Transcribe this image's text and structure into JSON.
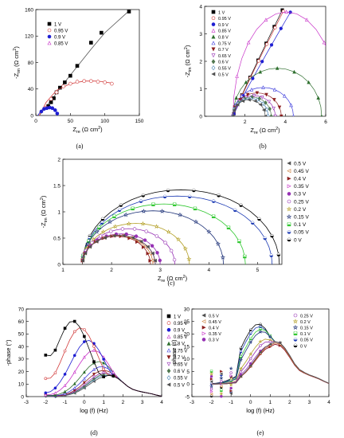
{
  "figure": {
    "captions": [
      "(a)",
      "(b)",
      "(c)",
      "(d)",
      "(e)"
    ]
  },
  "chart_data": [
    {
      "id": "a",
      "type": "scatter",
      "xlabel": "Z_re (Ω cm²)",
      "ylabel": "-Z_im (Ω cm²)",
      "xlim": [
        0,
        150
      ],
      "ylim": [
        0,
        160
      ],
      "xticks": [
        0,
        50,
        100,
        150
      ],
      "yticks": [
        0,
        40,
        80,
        120,
        160
      ],
      "legend_position": "top-left",
      "series": [
        {
          "name": "1 V",
          "color": "#000000",
          "marker": "square-filled",
          "x": [
            18,
            22,
            26,
            30,
            35,
            42,
            50,
            60,
            80,
            95,
            135
          ],
          "y": [
            14,
            20,
            26,
            35,
            42,
            50,
            60,
            75,
            110,
            125,
            157
          ],
          "fit": [
            [
              5,
              0
            ],
            [
              14,
              12
            ],
            [
              25,
              27
            ],
            [
              40,
              48
            ],
            [
              60,
              74
            ],
            [
              80,
              100
            ],
            [
              100,
              125
            ],
            [
              135,
              158
            ]
          ]
        },
        {
          "name": "0.95 V",
          "color": "#d23c3c",
          "marker": "circle-open",
          "x": [
            15,
            22,
            30,
            40,
            50,
            60,
            70,
            80,
            90,
            100,
            110
          ],
          "y": [
            12,
            25,
            35,
            44,
            48,
            51,
            52,
            52,
            51,
            50,
            48
          ],
          "fit": [
            [
              5,
              0
            ],
            [
              15,
              20
            ],
            [
              30,
              38
            ],
            [
              50,
              48
            ],
            [
              70,
              52
            ],
            [
              90,
              52
            ],
            [
              110,
              49
            ]
          ]
        },
        {
          "name": "0.9 V",
          "color": "#1e1ed2",
          "marker": "circle-filled",
          "x": [
            8,
            12,
            16,
            20,
            24,
            28,
            31
          ],
          "y": [
            6,
            10,
            11,
            12,
            11,
            8,
            3
          ],
          "fit": [
            [
              3,
              0
            ],
            [
              8,
              8
            ],
            [
              15,
              11
            ],
            [
              22,
              11
            ],
            [
              28,
              8
            ],
            [
              32,
              0
            ]
          ]
        },
        {
          "name": "0.85 V",
          "color": "#c832c8",
          "marker": "triangle-open",
          "x": [],
          "y": [],
          "fit": []
        }
      ]
    },
    {
      "id": "b",
      "type": "scatter",
      "xlabel": "Z_re (Ω cm²)",
      "ylabel": "-Z_im (Ω cm²)",
      "xlim": [
        0,
        6
      ],
      "ylim": [
        0,
        4
      ],
      "xticks": [
        2,
        4,
        6
      ],
      "yticks": [
        0,
        1,
        2,
        3,
        4
      ],
      "legend_position": "top-left",
      "series": [
        {
          "name": "1 V",
          "color": "#000000",
          "marker": "square-filled",
          "shape": "line",
          "r0": 1.4,
          "slope": 1.65,
          "xend": 3.8
        },
        {
          "name": "0.95 V",
          "color": "#d23c3c",
          "marker": "circle-open",
          "shape": "line",
          "r0": 1.4,
          "slope": 1.6,
          "xend": 3.85
        },
        {
          "name": "0.9 V",
          "color": "#1e1ed2",
          "marker": "circle-filled",
          "shape": "line",
          "r0": 1.4,
          "slope": 1.4,
          "xend": 4.2
        },
        {
          "name": "0.85 V",
          "color": "#c832c8",
          "marker": "triangle-open",
          "shape": "arc",
          "r0": 1.4,
          "r1": 6.7,
          "h": 3.8
        },
        {
          "name": "0.8 V",
          "color": "#2d6e2d",
          "marker": "triangle-filled",
          "shape": "arc",
          "r0": 1.4,
          "r1": 5.8,
          "h": 1.75
        },
        {
          "name": "0.75 V",
          "color": "#3c3cdc",
          "marker": "triangle-open",
          "shape": "arc",
          "r0": 1.4,
          "r1": 4.4,
          "h": 1.05
        },
        {
          "name": "0.7 V",
          "color": "#8c1e1e",
          "marker": "triangle-down-filled",
          "shape": "arc",
          "r0": 1.4,
          "r1": 3.8,
          "h": 0.85
        },
        {
          "name": "0.65 V",
          "color": "#9632b4",
          "marker": "triangle-down-open",
          "shape": "arc",
          "r0": 1.4,
          "r1": 3.5,
          "h": 0.75
        },
        {
          "name": "0.6 V",
          "color": "#507850",
          "marker": "diamond-filled",
          "shape": "arc",
          "r0": 1.4,
          "r1": 3.3,
          "h": 0.7
        },
        {
          "name": "0.55 V",
          "color": "#4682b4",
          "marker": "diamond-open",
          "shape": "arc",
          "r0": 1.4,
          "r1": 3.15,
          "h": 0.65
        },
        {
          "name": "0.5 V",
          "color": "#505050",
          "marker": "triangle-left-filled",
          "shape": "arc",
          "r0": 1.4,
          "r1": 3.0,
          "h": 0.6
        }
      ]
    },
    {
      "id": "c",
      "type": "scatter",
      "xlabel": "Z_re (Ω cm²)",
      "ylabel": "-Z_im (Ω cm²)",
      "xlim": [
        1,
        5.5
      ],
      "ylim": [
        0,
        2
      ],
      "xticks": [
        1,
        2,
        3,
        4,
        5
      ],
      "yticks": [
        0,
        0.5,
        1.0,
        1.5,
        2.0
      ],
      "legend_position": "right",
      "series": [
        {
          "name": "0.5 V",
          "color": "#505050",
          "marker": "triangle-left-filled",
          "r0": 1.4,
          "r1": 2.9,
          "h": 0.55
        },
        {
          "name": "0.45 V",
          "color": "#c87832",
          "marker": "triangle-left-open",
          "r0": 1.4,
          "r1": 2.85,
          "h": 0.55
        },
        {
          "name": "0.4 V",
          "color": "#8c1e1e",
          "marker": "triangle-right-filled",
          "r0": 1.4,
          "r1": 2.8,
          "h": 0.54
        },
        {
          "name": "0.35 V",
          "color": "#c832c8",
          "marker": "triangle-right-open",
          "r0": 1.4,
          "r1": 2.9,
          "h": 0.55
        },
        {
          "name": "0.3 V",
          "color": "#9632b4",
          "marker": "hexagon-filled",
          "r0": 1.4,
          "r1": 3.0,
          "h": 0.58
        },
        {
          "name": "0.25 V",
          "color": "#9632b4",
          "marker": "hexagon-open",
          "r0": 1.4,
          "r1": 3.3,
          "h": 0.68
        },
        {
          "name": "0.2 V",
          "color": "#b4a028",
          "marker": "star-open",
          "r0": 1.4,
          "r1": 3.6,
          "h": 0.78
        },
        {
          "name": "0.15 V",
          "color": "#1e3278",
          "marker": "star-open",
          "r0": 1.4,
          "r1": 4.3,
          "h": 1.02
        },
        {
          "name": "0.1 V",
          "color": "#32c832",
          "marker": "square-half",
          "r0": 1.4,
          "r1": 4.75,
          "h": 1.15
        },
        {
          "name": "0.05 V",
          "color": "#1e3cb4",
          "marker": "circle-half",
          "r0": 1.4,
          "r1": 5.3,
          "h": 1.3
        },
        {
          "name": "0 V",
          "color": "#000000",
          "marker": "circle-half",
          "r0": 1.4,
          "r1": 5.45,
          "h": 1.42
        }
      ]
    },
    {
      "id": "d",
      "type": "line",
      "xlabel": "log (f) (Hz)",
      "ylabel": "-phase (°)",
      "xlim": [
        -3,
        4
      ],
      "ylim": [
        0,
        70
      ],
      "xticks": [
        -3,
        -2,
        -1,
        0,
        1,
        2,
        3,
        4
      ],
      "yticks": [
        0,
        10,
        20,
        30,
        40,
        50,
        60,
        70
      ],
      "legend_position": "right",
      "series": [
        {
          "name": "1 V",
          "color": "#000000",
          "marker": "square-filled",
          "y_at_-2": 49,
          "peak_x": -0.6,
          "peak_y": 60.5
        },
        {
          "name": "0.95 V",
          "color": "#d23c3c",
          "marker": "circle-open",
          "y_at_-2": 22,
          "peak_x": -0.2,
          "peak_y": 55
        },
        {
          "name": "0.9 V",
          "color": "#1e1ed2",
          "marker": "circle-filled",
          "y_at_-2": 4,
          "peak_x": 0.2,
          "peak_y": 45
        },
        {
          "name": "0.85 V",
          "color": "#c832c8",
          "marker": "triangle-open",
          "y_at_-2": 2,
          "peak_x": 0.5,
          "peak_y": 37
        },
        {
          "name": "0.8 V",
          "color": "#2d6e2d",
          "marker": "triangle-filled",
          "y_at_-2": 2,
          "peak_x": 0.75,
          "peak_y": 28
        },
        {
          "name": "0.75 V",
          "color": "#3c3cdc",
          "marker": "triangle-open",
          "y_at_-2": 2,
          "peak_x": 0.9,
          "peak_y": 24
        },
        {
          "name": "0.7 V",
          "color": "#8c1e1e",
          "marker": "triangle-down-filled",
          "y_at_-2": 2,
          "peak_x": 1.0,
          "peak_y": 21
        },
        {
          "name": "0.65 V",
          "color": "#9632b4",
          "marker": "triangle-down-open",
          "y_at_-2": 2,
          "peak_x": 1.05,
          "peak_y": 19
        },
        {
          "name": "0.6 V",
          "color": "#507850",
          "marker": "diamond-filled",
          "y_at_-2": 1,
          "peak_x": 1.1,
          "peak_y": 18
        },
        {
          "name": "0.55 V",
          "color": "#4682b4",
          "marker": "diamond-open",
          "y_at_-2": 1,
          "peak_x": 1.1,
          "peak_y": 17
        },
        {
          "name": "0.5 V",
          "color": "#505050",
          "marker": "triangle-left-filled",
          "y_at_-2": 1,
          "peak_x": 1.15,
          "peak_y": 16
        }
      ]
    },
    {
      "id": "e",
      "type": "line",
      "xlabel": "log (f) (Hz)",
      "ylabel": "-phase (°)",
      "xlim": [
        -3,
        4
      ],
      "ylim": [
        -5,
        30
      ],
      "xticks": [
        -3,
        -2,
        -1,
        0,
        1,
        2,
        3,
        4
      ],
      "yticks": [
        -5,
        0,
        5,
        10,
        15,
        20,
        25,
        30
      ],
      "legend_position": "top",
      "series": [
        {
          "name": "0.5 V",
          "color": "#505050",
          "marker": "triangle-left-filled",
          "peak_x": 1.1,
          "peak_y": 16
        },
        {
          "name": "0.45 V",
          "color": "#c87832",
          "marker": "triangle-left-open",
          "peak_x": 1.1,
          "peak_y": 15.5
        },
        {
          "name": "0.4 V",
          "color": "#8c1e1e",
          "marker": "triangle-right-filled",
          "peak_x": 1.1,
          "peak_y": 15
        },
        {
          "name": "0.35 V",
          "color": "#c832c8",
          "marker": "triangle-right-open",
          "peak_x": 1.1,
          "peak_y": 15
        },
        {
          "name": "0.3 V",
          "color": "#9632b4",
          "marker": "hexagon-filled",
          "peak_x": 1.0,
          "peak_y": 15.5
        },
        {
          "name": "0.25 V",
          "color": "#9632b4",
          "marker": "hexagon-open",
          "peak_x": 0.9,
          "peak_y": 17
        },
        {
          "name": "0.2 V",
          "color": "#b4a028",
          "marker": "star-open",
          "peak_x": 0.8,
          "peak_y": 18
        },
        {
          "name": "0.15 V",
          "color": "#1e3278",
          "marker": "star-open",
          "peak_x": 0.6,
          "peak_y": 21
        },
        {
          "name": "0.1 V",
          "color": "#32c832",
          "marker": "square-half",
          "peak_x": 0.55,
          "peak_y": 22
        },
        {
          "name": "0.05 V",
          "color": "#1e3cb4",
          "marker": "circle-half",
          "peak_x": 0.45,
          "peak_y": 23
        },
        {
          "name": "0 V",
          "color": "#000000",
          "marker": "circle-half",
          "peak_x": 0.4,
          "peak_y": 24
        }
      ]
    }
  ]
}
